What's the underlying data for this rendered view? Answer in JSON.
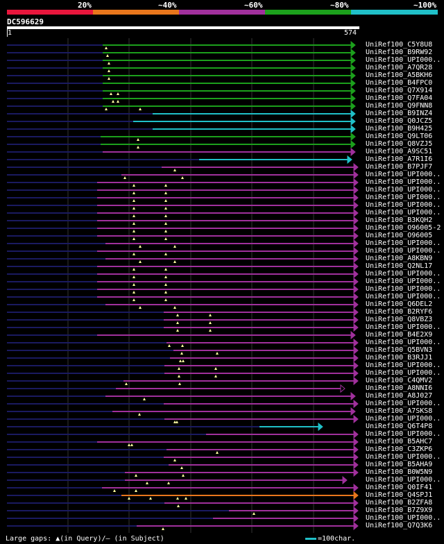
{
  "legend": {
    "colors": [
      "#e8163c",
      "#e8761c",
      "#a0309c",
      "#1ca01c",
      "#20c0c8"
    ],
    "labels": [
      "20%",
      "~40%",
      "~60%",
      "~80%",
      "~100%"
    ]
  },
  "query": {
    "name": "DC596629",
    "start": "1",
    "end": "574"
  },
  "footer": {
    "gaps_text": "Large gaps: ▲(in Query)/— (in Subject)",
    "scale_text": "=100char."
  },
  "hits": [
    {
      "label": "UniRef100_C5Y8U8",
      "c": 3,
      "s": 148,
      "e": 512,
      "a": "f",
      "t": [
        153
      ]
    },
    {
      "label": "UniRef100_B9RW92",
      "c": 3,
      "s": 148,
      "e": 512,
      "a": "f",
      "t": [
        155
      ]
    },
    {
      "label": "UniRef100_UPI000..",
      "c": 3,
      "s": 148,
      "e": 512,
      "a": "f",
      "t": [
        157
      ]
    },
    {
      "label": "UniRef100_A7QR28",
      "c": 3,
      "s": 148,
      "e": 512,
      "a": "f",
      "t": [
        157
      ]
    },
    {
      "label": "UniRef100_A5BKH6",
      "c": 3,
      "s": 148,
      "e": 512,
      "a": "f",
      "t": [
        157
      ]
    },
    {
      "label": "UniRef100_B4FPC0",
      "c": 3,
      "s": 148,
      "e": 512,
      "a": "f",
      "t": []
    },
    {
      "label": "UniRef100_Q7X914",
      "c": 3,
      "s": 148,
      "e": 512,
      "a": "f",
      "t": [
        160,
        170
      ]
    },
    {
      "label": "UniRef100_Q7FA04",
      "c": 3,
      "s": 148,
      "e": 512,
      "a": "f",
      "t": [
        163,
        170
      ]
    },
    {
      "label": "UniRef100_Q9FNN8",
      "c": 3,
      "s": 148,
      "e": 512,
      "a": "f",
      "t": [
        153,
        202
      ]
    },
    {
      "label": "UniRef100_B9INZ4",
      "c": 4,
      "s": 220,
      "e": 512,
      "a": "f",
      "t": []
    },
    {
      "label": "UniRef100_Q0JCZ5",
      "c": 4,
      "s": 192,
      "e": 512,
      "a": "f",
      "t": []
    },
    {
      "label": "UniRef100_B9H425",
      "c": 4,
      "s": 220,
      "e": 512,
      "a": "f",
      "t": []
    },
    {
      "label": "UniRef100_Q9LT06",
      "c": 3,
      "s": 145,
      "e": 512,
      "a": "f",
      "t": [
        199
      ]
    },
    {
      "label": "UniRef100_Q8VZJ5",
      "c": 3,
      "s": 145,
      "e": 512,
      "a": "f",
      "t": [
        199
      ]
    },
    {
      "label": "UniRef100_A9SC51",
      "c": 2,
      "s": 148,
      "e": 512,
      "a": "f",
      "t": []
    },
    {
      "label": "UniRef100_A7R1I6",
      "c": 4,
      "s": 287,
      "e": 507,
      "a": "f",
      "t": []
    },
    {
      "label": "UniRef100_B7PJF7",
      "c": 2,
      "s": 233,
      "e": 516,
      "a": "f",
      "t": [
        252
      ]
    },
    {
      "label": "UniRef100_UPI000..",
      "c": 2,
      "s": 175,
      "e": 516,
      "a": "f",
      "t": [
        180,
        263
      ]
    },
    {
      "label": "UniRef100_UPI000..",
      "c": 2,
      "s": 140,
      "e": 516,
      "a": "f",
      "t": [
        193,
        239
      ]
    },
    {
      "label": "UniRef100_UPI000..",
      "c": 2,
      "s": 140,
      "e": 516,
      "a": "f",
      "t": [
        193,
        239
      ]
    },
    {
      "label": "UniRef100_UPI000..",
      "c": 2,
      "s": 140,
      "e": 516,
      "a": "f",
      "t": [
        193,
        239
      ]
    },
    {
      "label": "UniRef100_UPI000..",
      "c": 2,
      "s": 140,
      "e": 516,
      "a": "f",
      "t": [
        193,
        239
      ]
    },
    {
      "label": "UniRef100_UPI000..",
      "c": 2,
      "s": 140,
      "e": 516,
      "a": "f",
      "t": [
        193,
        239
      ]
    },
    {
      "label": "UniRef100_B3KQH2",
      "c": 2,
      "s": 140,
      "e": 516,
      "a": "f",
      "t": [
        193,
        239
      ]
    },
    {
      "label": "UniRef100_O96005-2",
      "c": 2,
      "s": 140,
      "e": 516,
      "a": "f",
      "t": [
        193,
        239
      ]
    },
    {
      "label": "UniRef100_O96005",
      "c": 2,
      "s": 140,
      "e": 516,
      "a": "f",
      "t": [
        193,
        239
      ]
    },
    {
      "label": "UniRef100_UPI000..",
      "c": 2,
      "s": 152,
      "e": 516,
      "a": "f",
      "t": [
        202,
        252
      ]
    },
    {
      "label": "UniRef100_UPI000..",
      "c": 2,
      "s": 140,
      "e": 516,
      "a": "f",
      "t": [
        193,
        239
      ]
    },
    {
      "label": "UniRef100_A8KBN9",
      "c": 2,
      "s": 152,
      "e": 516,
      "a": "f",
      "t": [
        202,
        252
      ]
    },
    {
      "label": "UniRef100_Q2NL17",
      "c": 2,
      "s": 140,
      "e": 516,
      "a": "f",
      "t": [
        193,
        239
      ]
    },
    {
      "label": "UniRef100_UPI000..",
      "c": 2,
      "s": 140,
      "e": 516,
      "a": "f",
      "t": [
        193,
        239
      ]
    },
    {
      "label": "UniRef100_UPI000..",
      "c": 2,
      "s": 140,
      "e": 516,
      "a": "f",
      "t": [
        193,
        239
      ]
    },
    {
      "label": "UniRef100_UPI000..",
      "c": 2,
      "s": 140,
      "e": 516,
      "a": "f",
      "t": [
        193,
        239
      ]
    },
    {
      "label": "UniRef100_UPI000..",
      "c": 2,
      "s": 140,
      "e": 516,
      "a": "f",
      "t": [
        193,
        239
      ]
    },
    {
      "label": "UniRef100_Q6DEL2",
      "c": 2,
      "s": 152,
      "e": 516,
      "a": "f",
      "t": [
        202,
        252
      ]
    },
    {
      "label": "UniRef100_B2RYF6",
      "c": 2,
      "s": 236,
      "e": 516,
      "a": "f",
      "t": [
        256,
        303
      ]
    },
    {
      "label": "UniRef100_Q8VBZ3",
      "c": 2,
      "s": 236,
      "e": 516,
      "a": "f",
      "t": [
        256,
        303
      ]
    },
    {
      "label": "UniRef100_UPI000..",
      "c": 2,
      "s": 236,
      "e": 516,
      "a": "f",
      "t": [
        256,
        303
      ]
    },
    {
      "label": "UniRef100_B4E2X9",
      "c": 2,
      "s": 140,
      "e": 512,
      "a": "f",
      "t": []
    },
    {
      "label": "UniRef100_UPI000..",
      "c": 2,
      "s": 240,
      "e": 516,
      "a": "f",
      "t": [
        244,
        263
      ]
    },
    {
      "label": "UniRef100_Q5BVN3",
      "c": 2,
      "s": 250,
      "e": 516,
      "a": "f",
      "t": [
        262,
        313
      ]
    },
    {
      "label": "UniRef100_B3RJJ1",
      "c": 2,
      "s": 245,
      "e": 516,
      "a": "f",
      "t": [
        260,
        264
      ]
    },
    {
      "label": "UniRef100_UPI000..",
      "c": 2,
      "s": 237,
      "e": 516,
      "a": "f",
      "t": [
        258,
        311
      ]
    },
    {
      "label": "UniRef100_UPI000..",
      "c": 2,
      "s": 237,
      "e": 516,
      "a": "f",
      "t": [
        258,
        311
      ]
    },
    {
      "label": "UniRef100_C4QMV2",
      "c": 2,
      "s": 178,
      "e": 516,
      "a": "f",
      "t": [
        182,
        259
      ]
    },
    {
      "label": "UniRef100_A8NNI6",
      "c": 2,
      "s": 167,
      "e": 497,
      "a": "o",
      "t": []
    },
    {
      "label": "UniRef100_A8J027",
      "c": 2,
      "s": 152,
      "e": 512,
      "a": "f",
      "t": [
        208
      ]
    },
    {
      "label": "UniRef100_UPI000..",
      "c": 2,
      "s": 236,
      "e": 516,
      "a": "f",
      "t": []
    },
    {
      "label": "UniRef100_A7SKS8",
      "c": 2,
      "s": 162,
      "e": 512,
      "a": "f",
      "t": [
        201
      ]
    },
    {
      "label": "UniRef100_UPI000..",
      "c": 2,
      "s": 237,
      "e": 516,
      "a": "f",
      "t": [
        252,
        255
      ]
    },
    {
      "label": "UniRef100_Q6T4P8",
      "c": 4,
      "s": 374,
      "e": 465,
      "a": "f",
      "t": []
    },
    {
      "label": "UniRef100_UPI000..",
      "c": 2,
      "s": 297,
      "e": 516,
      "a": "f",
      "t": []
    },
    {
      "label": "UniRef100_B5AHC7",
      "c": 2,
      "s": 140,
      "e": 516,
      "a": "f",
      "t": [
        186,
        190
      ]
    },
    {
      "label": "UniRef100_C3ZKP6",
      "c": 2,
      "s": 240,
      "e": 516,
      "a": "f",
      "t": [
        313
      ]
    },
    {
      "label": "UniRef100_UPI000..",
      "c": 2,
      "s": 236,
      "e": 516,
      "a": "f",
      "t": [
        252
      ]
    },
    {
      "label": "UniRef100_B5AHA9",
      "c": 2,
      "s": 243,
      "e": 516,
      "a": "f",
      "t": [
        262
      ]
    },
    {
      "label": "UniRef100_B0W5N9",
      "c": 2,
      "s": 180,
      "e": 516,
      "a": "f",
      "t": [
        196,
        264
      ]
    },
    {
      "label": "UniRef100_UPI000..",
      "c": 2,
      "s": 180,
      "e": 500,
      "a": "f",
      "t": [
        212,
        243
      ]
    },
    {
      "label": "UniRef100_Q0IF41",
      "c": 2,
      "s": 147,
      "e": 516,
      "a": "f",
      "t": [
        165,
        196
      ]
    },
    {
      "label": "UniRef100_Q4SPJ1",
      "c": 1,
      "s": 175,
      "e": 516,
      "a": "f",
      "t": [
        186,
        217,
        256,
        268
      ]
    },
    {
      "label": "UniRef100_B2ZFA8",
      "c": 2,
      "s": 237,
      "e": 516,
      "a": "f",
      "t": [
        257
      ]
    },
    {
      "label": "UniRef100_B7Z9X9",
      "c": 2,
      "s": 330,
      "e": 516,
      "a": "f",
      "t": [
        366
      ]
    },
    {
      "label": "UniRef100_UPI000..",
      "c": 2,
      "s": 307,
      "e": 516,
      "a": "f",
      "t": []
    },
    {
      "label": "UniRef100_Q7Q3K6",
      "c": 2,
      "s": 197,
      "e": 516,
      "a": "f",
      "t": [
        235
      ]
    }
  ]
}
